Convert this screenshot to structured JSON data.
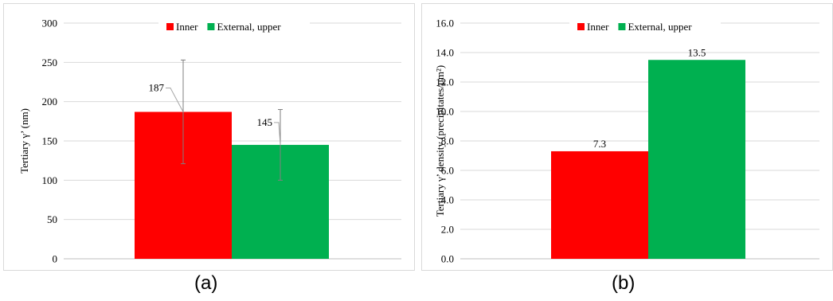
{
  "chart_data": [
    {
      "type": "bar",
      "categories": [
        ""
      ],
      "series": [
        {
          "name": "Inner",
          "values": [
            187
          ],
          "error": [
            66
          ],
          "color": "#ff0000",
          "label": "187"
        },
        {
          "name": "External, upper",
          "values": [
            145
          ],
          "error": [
            45
          ],
          "color": "#00b050",
          "label": "145"
        }
      ],
      "ylabel": "Tertiary γ’ (nm)",
      "ylim": [
        0,
        300
      ],
      "yticks": [
        "0",
        "50",
        "100",
        "150",
        "200",
        "250",
        "300"
      ],
      "ytick_values": [
        0,
        50,
        100,
        150,
        200,
        250,
        300
      ],
      "grid": true,
      "legend": "top"
    },
    {
      "type": "bar",
      "categories": [
        ""
      ],
      "series": [
        {
          "name": "Inner",
          "values": [
            7.3
          ],
          "color": "#ff0000",
          "label": "7.3"
        },
        {
          "name": "External, upper",
          "values": [
            13.5
          ],
          "color": "#00b050",
          "label": "13.5"
        }
      ],
      "ylabel": "Tertiary γ’ density (precipitates/μm²)",
      "ylim": [
        0,
        16
      ],
      "yticks": [
        "0.0",
        "2.0",
        "4.0",
        "6.0",
        "8.0",
        "10.0",
        "12.0",
        "14.0",
        "16.0"
      ],
      "ytick_values": [
        0,
        2,
        4,
        6,
        8,
        10,
        12,
        14,
        16
      ],
      "grid": true,
      "legend": "top"
    }
  ],
  "captions": [
    "(a)",
    "(b)"
  ]
}
